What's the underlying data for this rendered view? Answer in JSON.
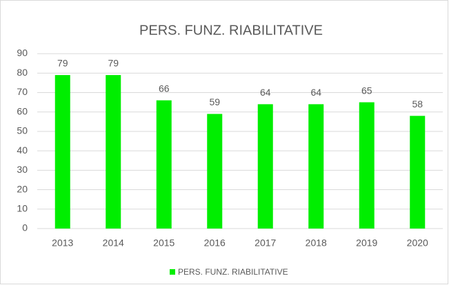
{
  "chart_data": {
    "type": "bar",
    "title": "PERS. FUNZ. RIABILITATIVE",
    "categories": [
      "2013",
      "2014",
      "2015",
      "2016",
      "2017",
      "2018",
      "2019",
      "2020"
    ],
    "series": [
      {
        "name": "PERS. FUNZ. RIABILITATIVE",
        "color": "#00ee00",
        "values": [
          79,
          79,
          66,
          59,
          64,
          64,
          65,
          58
        ]
      }
    ],
    "ylim": [
      0,
      90
    ],
    "yticks": [
      0,
      10,
      20,
      30,
      40,
      50,
      60,
      70,
      80,
      90
    ],
    "grid": true,
    "legend": "bottom"
  }
}
